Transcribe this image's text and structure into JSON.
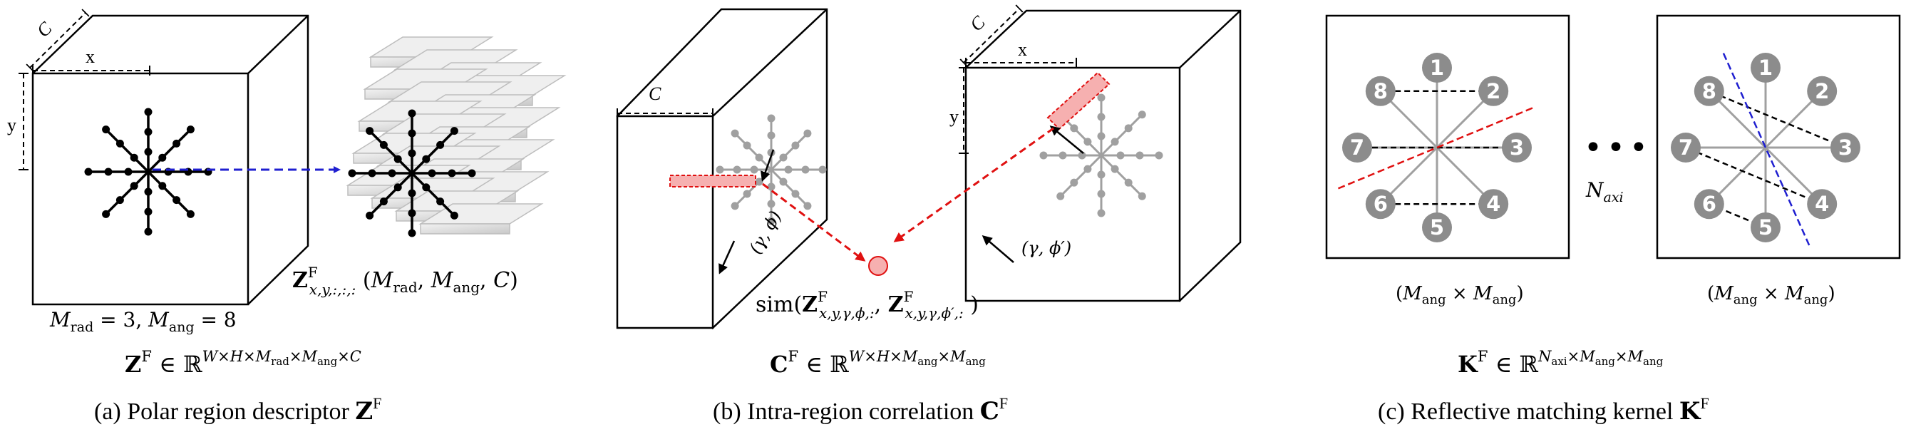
{
  "colors": {
    "black": "#000000",
    "grey_star": "#a0a0a0",
    "node_fill": "#8c8c8c",
    "blue_arrow": "#1f1fd0",
    "red": "#e01010",
    "red_fill": "#f6b0b0",
    "slab_light": "#e6e6e6",
    "slab_mid": "#c8c8c8"
  },
  "panel_a": {
    "label_c": "C",
    "label_x": "x",
    "label_y": "y",
    "params": "M_rad = 3, M_ang = 8",
    "params_parts": {
      "m1": "M",
      "m1_sub": "rad",
      "eq1": " = 3, ",
      "m2": "M",
      "m2_sub": "ang",
      "eq2": " = 8"
    },
    "z_desc": {
      "Z": "Z",
      "sup": "F",
      "sub": "x,y,:,:,:",
      "rest_open": " (",
      "m1": "M",
      "m1_sub": "rad",
      "comma1": ", ",
      "m2": "M",
      "m2_sub": "ang",
      "comma2": ", ",
      "c": "C",
      "rest_close": ")"
    },
    "formula": {
      "Z": "Z",
      "sup": "F",
      "in": " ∈ ",
      "R": "ℝ",
      "exp": "W×H×M",
      "exp_sub1": "rad",
      "exp_mid": "×M",
      "exp_sub2": "ang",
      "exp_end": "×C"
    },
    "caption": {
      "prefix": "(a) Polar region descriptor ",
      "Z": "Z",
      "sup": "F"
    }
  },
  "panel_b": {
    "label_c_left": "C",
    "label_c_right": "C",
    "label_x": "x",
    "label_y": "y",
    "angle_left": "(γ, ϕ)",
    "angle_right": "(γ, ϕ′)",
    "sim": {
      "fn": "sim(",
      "Z1": "Z",
      "sup1": "F",
      "sub1": "x,y,γ,ϕ,:",
      "comma": ", ",
      "Z2": "Z",
      "sup2": "F",
      "sub2": "x,y,γ,ϕ′,:",
      "close": " )"
    },
    "formula": {
      "C": "C",
      "sup": "F",
      "in": " ∈ ",
      "R": "ℝ",
      "exp": "W×H×M",
      "exp_sub1": "ang",
      "exp_mid": "×M",
      "exp_sub2": "ang"
    },
    "caption": {
      "prefix": "(b) Intra-region correlation ",
      "C": "C",
      "sup": "F"
    }
  },
  "panel_c": {
    "nodes": [
      "1",
      "2",
      "3",
      "4",
      "5",
      "6",
      "7",
      "8"
    ],
    "dots": "•••",
    "n_axi": {
      "N": "N",
      "sub": "axi"
    },
    "box_label_left": {
      "open": "(",
      "m1": "M",
      "sub1": "ang",
      "times": " × ",
      "m2": "M",
      "sub2": "ang",
      "close": ")"
    },
    "box_label_right": {
      "open": "(",
      "m1": "M",
      "sub1": "ang",
      "times": " × ",
      "m2": "M",
      "sub2": "ang",
      "close": ")"
    },
    "formula": {
      "K": "K",
      "sup": "F",
      "in": " ∈ ",
      "R": "ℝ",
      "exp_n": "N",
      "exp_sub0": "axi",
      "exp_mid1": "×M",
      "exp_sub1": "ang",
      "exp_mid2": "×M",
      "exp_sub2": "ang"
    },
    "caption": {
      "prefix": "(c)  Reflective matching kernel ",
      "K": "K",
      "sup": "F"
    }
  }
}
